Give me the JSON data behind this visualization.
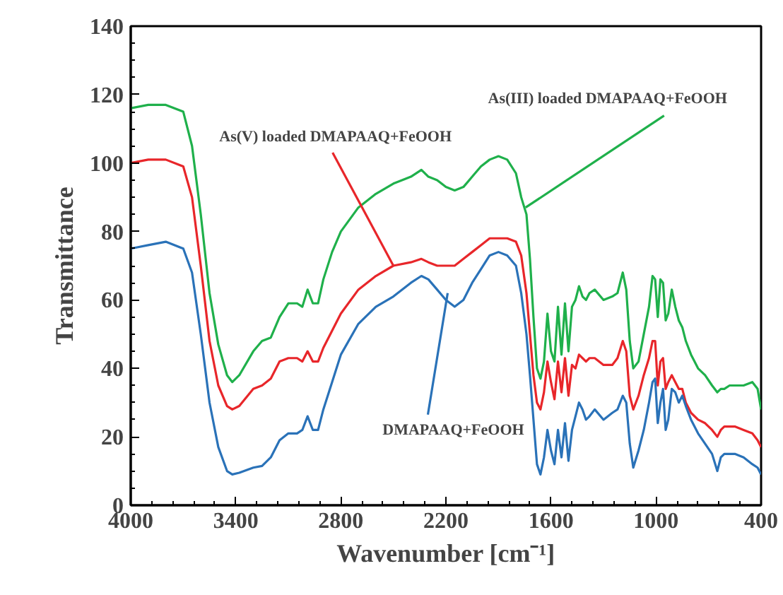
{
  "chart_data": {
    "type": "line",
    "xlabel": "Wavenumber [cm⁻¹]",
    "ylabel": "Transmittance",
    "xlim": [
      4000,
      400
    ],
    "xticks": [
      4000,
      3400,
      2800,
      2200,
      1600,
      1000,
      400
    ],
    "ylim": [
      0,
      140
    ],
    "yticks": [
      0,
      20,
      40,
      60,
      80,
      100,
      120,
      140
    ],
    "grid": false,
    "marker": "none",
    "line_style": "solid",
    "x": [
      4000,
      3900,
      3800,
      3700,
      3650,
      3600,
      3550,
      3500,
      3450,
      3420,
      3380,
      3300,
      3250,
      3200,
      3150,
      3100,
      3050,
      3020,
      2990,
      2960,
      2930,
      2900,
      2850,
      2800,
      2700,
      2600,
      2500,
      2400,
      2340,
      2300,
      2250,
      2200,
      2150,
      2100,
      2050,
      2000,
      1950,
      1900,
      1850,
      1800,
      1770,
      1740,
      1720,
      1700,
      1680,
      1660,
      1640,
      1620,
      1600,
      1580,
      1560,
      1540,
      1520,
      1500,
      1480,
      1460,
      1440,
      1420,
      1400,
      1380,
      1350,
      1300,
      1250,
      1220,
      1190,
      1170,
      1150,
      1130,
      1100,
      1070,
      1040,
      1020,
      1005,
      990,
      975,
      960,
      945,
      930,
      910,
      890,
      870,
      850,
      830,
      800,
      760,
      720,
      680,
      650,
      630,
      610,
      580,
      550,
      500,
      450,
      420,
      400
    ],
    "series": [
      {
        "color": "#1fb04b",
        "values": [
          116,
          117,
          117,
          115,
          105,
          85,
          62,
          47,
          38,
          36,
          38,
          45,
          48,
          49,
          55,
          59,
          59,
          58,
          63,
          59,
          59,
          66,
          74,
          80,
          87,
          91,
          94,
          96,
          98,
          96,
          95,
          93,
          92,
          93,
          96,
          99,
          101,
          102,
          101,
          97,
          90,
          85,
          72,
          55,
          40,
          37,
          42,
          56,
          45,
          42,
          58,
          44,
          59,
          45,
          58,
          60,
          64,
          61,
          60,
          62,
          63,
          60,
          61,
          62,
          68,
          63,
          48,
          40,
          42,
          50,
          58,
          67,
          66,
          55,
          66,
          65,
          54,
          56,
          63,
          58,
          54,
          52,
          48,
          44,
          40,
          38,
          35,
          33,
          34,
          34,
          35,
          35,
          35,
          36,
          34,
          28
        ]
      },
      {
        "color": "#e8262a",
        "values": [
          100,
          101,
          101,
          99,
          90,
          70,
          48,
          35,
          29,
          28,
          29,
          34,
          35,
          37,
          42,
          43,
          43,
          42,
          45,
          42,
          42,
          46,
          51,
          56,
          63,
          67,
          70,
          71,
          72,
          71,
          70,
          70,
          70,
          72,
          74,
          76,
          78,
          78,
          78,
          77,
          73,
          62,
          50,
          38,
          30,
          28,
          33,
          42,
          36,
          31,
          42,
          33,
          43,
          32,
          41,
          40,
          44,
          43,
          42,
          43,
          43,
          41,
          41,
          43,
          48,
          45,
          32,
          28,
          32,
          38,
          43,
          48,
          48,
          35,
          42,
          43,
          34,
          36,
          38,
          36,
          34,
          34,
          30,
          27,
          25,
          24,
          22,
          20,
          22,
          23,
          23,
          23,
          22,
          21,
          19,
          17
        ]
      },
      {
        "color": "#2a72b8",
        "values": [
          75,
          76,
          77,
          75,
          68,
          50,
          30,
          17,
          10,
          9,
          9.5,
          11,
          11.5,
          14,
          19,
          21,
          21,
          22,
          26,
          22,
          22,
          28,
          36,
          44,
          53,
          58,
          61,
          65,
          67,
          66,
          63,
          60,
          58,
          60,
          65,
          69,
          73,
          74,
          73,
          70,
          62,
          50,
          38,
          25,
          12,
          9,
          14,
          22,
          16,
          12,
          22,
          14,
          24,
          13,
          22,
          26,
          30,
          28,
          25,
          26,
          28,
          25,
          27,
          28,
          32,
          30,
          18,
          11,
          16,
          22,
          30,
          36,
          37,
          24,
          30,
          34,
          22,
          25,
          34,
          33,
          30,
          32,
          29,
          25,
          21,
          18,
          15,
          10,
          14,
          15,
          15,
          15,
          14,
          12,
          11,
          9
        ]
      }
    ],
    "annotations": [
      {
        "text": "As(III) loaded DMAPAAQ+FeOOH",
        "x": 1745,
        "y": 87
      },
      {
        "text": "As(V) loaded DMAPAAQ+FeOOH",
        "x": 2500,
        "y": 70
      },
      {
        "text": "DMAPAAQ+FeOOH",
        "x": 2190,
        "y": 62
      }
    ]
  }
}
